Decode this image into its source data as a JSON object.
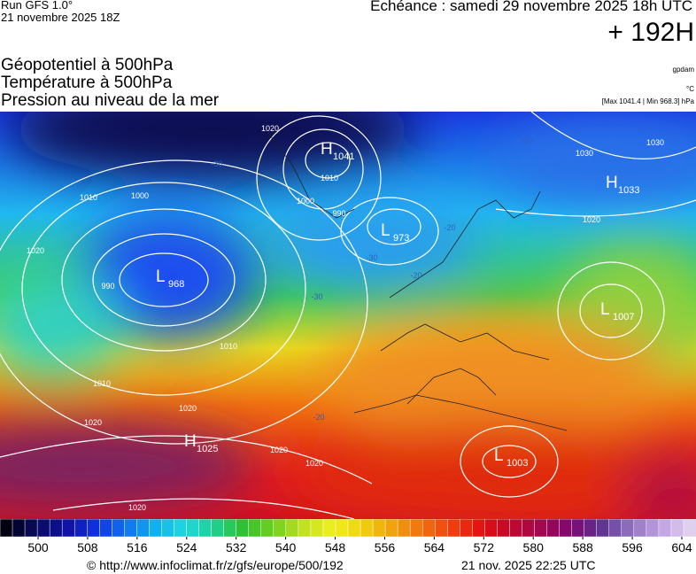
{
  "header": {
    "run": "Run GFS 1.0°",
    "run_date": "21 novembre 2025 18Z",
    "valid": "Echéance : samedi 29 novembre 2025 18h UTC",
    "lead": "+ 192H",
    "fields": [
      "Géopotentiel à 500hPa",
      "Température à 500hPa",
      "Pression au niveau de la mer"
    ],
    "unit_geopotential": "gpdam",
    "unit_temperature": "°C",
    "pressure_range": "[Max 1041.4 | Min 968.3] hPa"
  },
  "map": {
    "centers": [
      {
        "letter": "H",
        "value": 1041
      },
      {
        "letter": "L",
        "value": 973
      },
      {
        "letter": "L",
        "value": 968
      },
      {
        "letter": "H",
        "value": 1033
      },
      {
        "letter": "L",
        "value": 1007
      },
      {
        "letter": "H",
        "value": 1025
      },
      {
        "letter": "L",
        "value": 1003
      }
    ],
    "isobar_labels": [
      1010,
      1000,
      1020,
      990,
      1010,
      1000,
      990,
      1020,
      1010,
      1020,
      1020,
      1020,
      1020,
      1030,
      1030,
      1020,
      1010,
      1020
    ],
    "temperature_labels": [
      -30,
      -30,
      -30,
      -30,
      -20,
      -20,
      -20
    ]
  },
  "colorbar": {
    "ticks": [
      500,
      508,
      516,
      524,
      532,
      540,
      548,
      556,
      564,
      572,
      580,
      588,
      596,
      604
    ]
  },
  "footer": {
    "source": "© http://www.infoclimat.fr/z/gfs/europe/500/192",
    "generated": "21 nov. 2025 22:25 UTC"
  }
}
